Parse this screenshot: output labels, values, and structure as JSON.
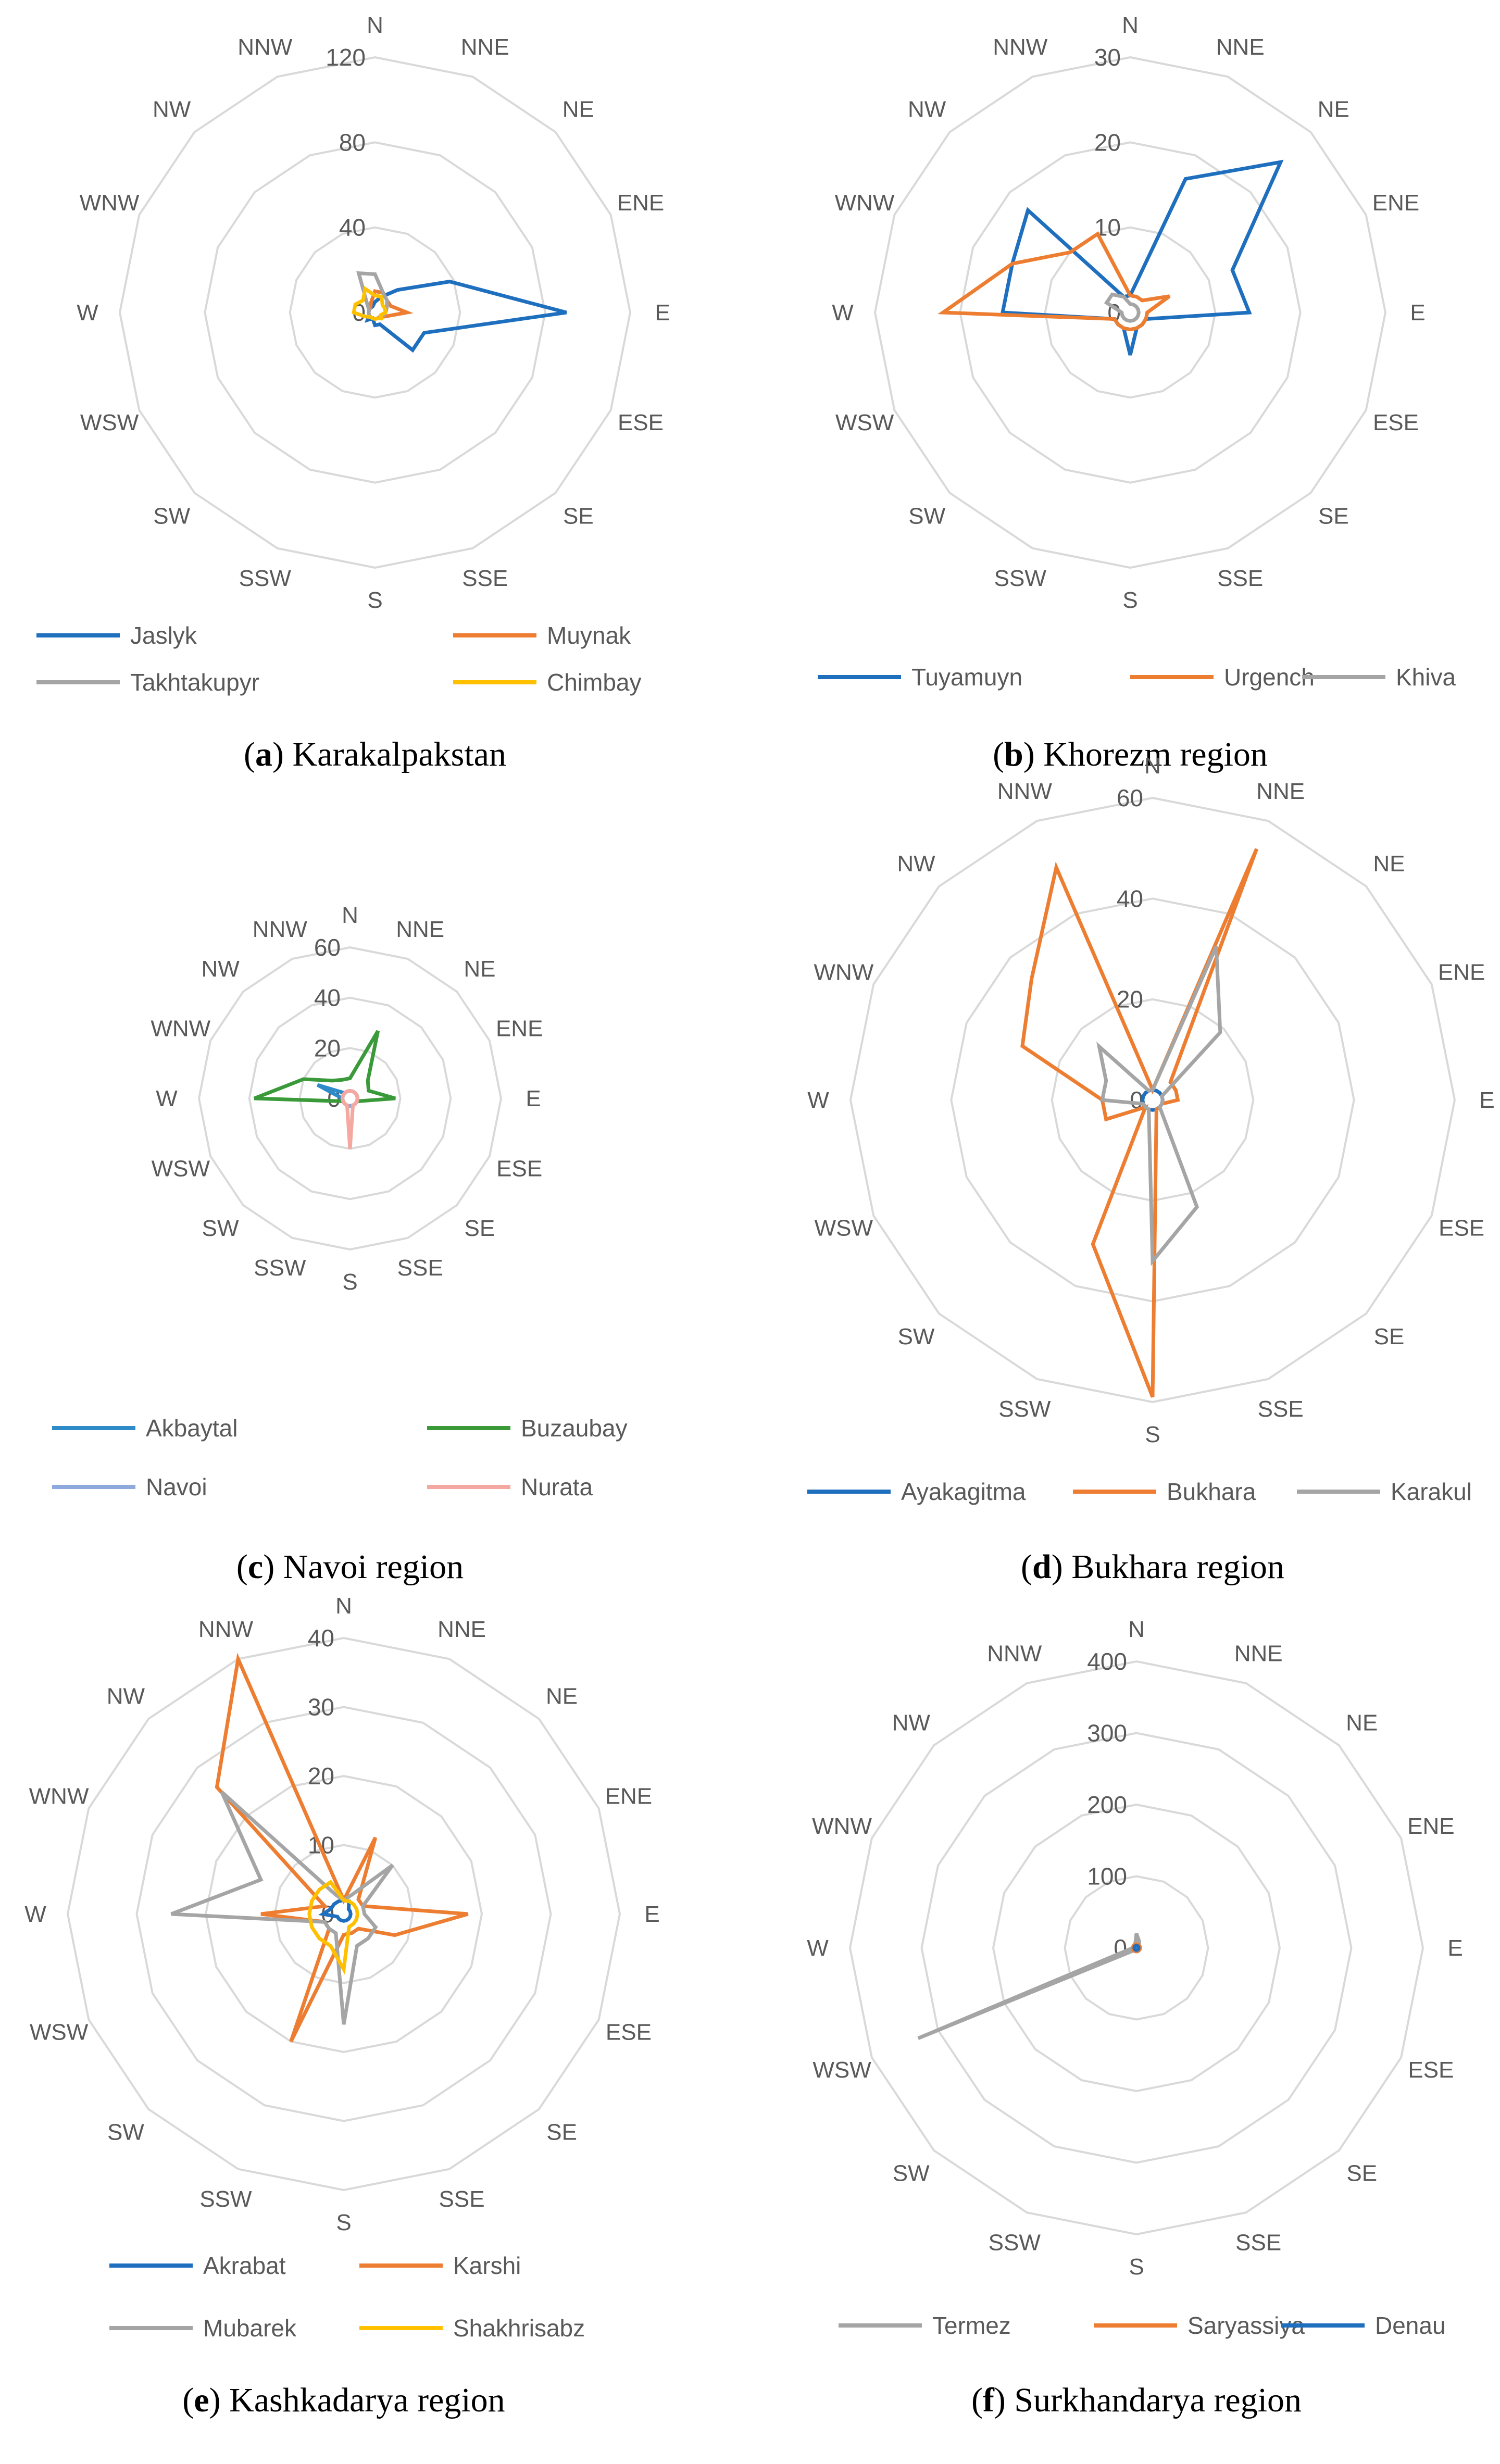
{
  "directions": [
    "N",
    "NNE",
    "NE",
    "ENE",
    "E",
    "ESE",
    "SE",
    "SSE",
    "S",
    "SSW",
    "SW",
    "WSW",
    "W",
    "WNW",
    "NW",
    "NNW"
  ],
  "chart_data": [
    {
      "type": "radar",
      "caption_letter": "a",
      "caption_text": "Karakalpakstan",
      "ticks": [
        "0",
        "40",
        "80",
        "120"
      ],
      "rmax": 120,
      "legend_columns": 2,
      "series": [
        {
          "name": "Jaslyk",
          "color": "#1F6FBF",
          "values": [
            5,
            8,
            15,
            38,
            90,
            25,
            25,
            6,
            6,
            3,
            5,
            3,
            3,
            3,
            3,
            3
          ]
        },
        {
          "name": "Muynak",
          "color": "#ED7D31",
          "values": [
            10,
            10,
            8,
            8,
            15,
            5,
            3,
            3,
            3,
            3,
            3,
            3,
            3,
            3,
            3,
            5
          ]
        },
        {
          "name": "Takhtakupyr",
          "color": "#A5A5A5",
          "values": [
            18,
            10,
            8,
            6,
            5,
            4,
            4,
            3,
            3,
            3,
            3,
            3,
            3,
            3,
            5,
            20
          ]
        },
        {
          "name": "Chimbay",
          "color": "#FFC000",
          "values": [
            8,
            8,
            5,
            5,
            5,
            3,
            4,
            3,
            3,
            3,
            3,
            5,
            10,
            10,
            8,
            12
          ]
        }
      ]
    },
    {
      "type": "radar",
      "caption_letter": "b",
      "caption_text": "Khorezm region",
      "ticks": [
        "0",
        "10",
        "20",
        "30"
      ],
      "rmax": 30,
      "legend_columns": 3,
      "series": [
        {
          "name": "Tuyamuyn",
          "color": "#1F6FBF",
          "values": [
            2,
            17,
            25,
            13,
            14,
            2,
            2,
            2,
            5,
            2,
            2,
            2,
            15,
            15,
            17,
            2
          ]
        },
        {
          "name": "Urgench",
          "color": "#ED7D31",
          "values": [
            2,
            2,
            2,
            5,
            2,
            2,
            2,
            2,
            2,
            2,
            2,
            2,
            22,
            15,
            10,
            10
          ]
        },
        {
          "name": "Khiva",
          "color": "#A5A5A5",
          "values": [
            1,
            1,
            1,
            1,
            1,
            1,
            1,
            1,
            1,
            1,
            1,
            1,
            1,
            3,
            3,
            2
          ]
        }
      ]
    },
    {
      "type": "radar",
      "caption_letter": "c",
      "caption_text": "Navoi region",
      "ticks": [
        "0",
        "20",
        "40",
        "60"
      ],
      "rmax": 60,
      "legend_columns": 2,
      "series": [
        {
          "name": "Akbaytal",
          "color": "#2E8BC8",
          "values": [
            3,
            3,
            3,
            3,
            3,
            3,
            3,
            3,
            3,
            3,
            3,
            3,
            3,
            14,
            3,
            3
          ]
        },
        {
          "name": "Buzaubay",
          "color": "#3A9A3A",
          "values": [
            8,
            29,
            10,
            8,
            18,
            3,
            3,
            3,
            3,
            3,
            3,
            3,
            38,
            20,
            10,
            8
          ]
        },
        {
          "name": "Navoi",
          "color": "#8EA9DB",
          "values": [
            3,
            3,
            3,
            3,
            3,
            3,
            3,
            3,
            3,
            3,
            3,
            3,
            3,
            3,
            3,
            3
          ]
        },
        {
          "name": "Nurata",
          "color": "#F4A8A0",
          "values": [
            3,
            3,
            3,
            3,
            3,
            3,
            3,
            3,
            20,
            3,
            3,
            3,
            3,
            3,
            3,
            3
          ]
        }
      ]
    },
    {
      "type": "radar",
      "caption_letter": "d",
      "caption_text": "Bukhara region",
      "ticks": [
        "0",
        "20",
        "40",
        "60"
      ],
      "rmax": 60,
      "legend_columns": 3,
      "series": [
        {
          "name": "Ayakagitma",
          "color": "#1F6FBF",
          "values": [
            2,
            2,
            2,
            2,
            2,
            2,
            2,
            2,
            2,
            2,
            2,
            2,
            2,
            2,
            2,
            2
          ]
        },
        {
          "name": "Bukhara",
          "color": "#ED7D31",
          "values": [
            2,
            54,
            5,
            5,
            5,
            2,
            2,
            2,
            59,
            31,
            2,
            10,
            10,
            28,
            34,
            50
          ]
        },
        {
          "name": "Karakul",
          "color": "#A5A5A5",
          "values": [
            2,
            33,
            19,
            2,
            2,
            2,
            2,
            23,
            32,
            2,
            2,
            2,
            10,
            10,
            15,
            2
          ]
        }
      ]
    },
    {
      "type": "radar",
      "caption_letter": "e",
      "caption_text": "Kashkadarya region",
      "ticks": [
        "0",
        "10",
        "20",
        "30",
        "40"
      ],
      "rmax": 40,
      "legend_columns": 2,
      "series": [
        {
          "name": "Akrabat",
          "color": "#1F6FBF",
          "values": [
            2,
            2,
            1,
            1,
            1,
            1,
            1,
            1,
            1,
            1,
            1,
            1,
            3,
            2,
            2,
            2
          ]
        },
        {
          "name": "Karshi",
          "color": "#ED7D31",
          "values": [
            2,
            12,
            3,
            3,
            18,
            8,
            3,
            3,
            3,
            20,
            3,
            3,
            12,
            3,
            26,
            42
          ]
        },
        {
          "name": "Mubarek",
          "color": "#A5A5A5",
          "values": [
            2,
            3,
            10,
            3,
            3,
            5,
            5,
            5,
            16,
            3,
            3,
            3,
            25,
            13,
            25,
            3
          ]
        },
        {
          "name": "Shakhrisabz",
          "color": "#FFC000",
          "values": [
            2,
            2,
            2,
            2,
            2,
            2,
            2,
            2,
            8,
            5,
            5,
            5,
            5,
            5,
            5,
            5
          ]
        }
      ]
    },
    {
      "type": "radar",
      "caption_letter": "f",
      "caption_text": "Surkhandarya region",
      "ticks": [
        "0",
        "100",
        "200",
        "300",
        "400"
      ],
      "rmax": 400,
      "legend_columns": 3,
      "series": [
        {
          "name": "Termez",
          "color": "#A5A5A5",
          "values": [
            20,
            10,
            5,
            5,
            5,
            5,
            5,
            5,
            5,
            5,
            5,
            330,
            5,
            5,
            5,
            5
          ]
        },
        {
          "name": "Saryassiya",
          "color": "#ED7D31",
          "values": [
            5,
            5,
            5,
            5,
            5,
            5,
            5,
            5,
            5,
            5,
            5,
            5,
            5,
            5,
            5,
            5
          ]
        },
        {
          "name": "Denau",
          "color": "#1F6FBF",
          "values": [
            3,
            3,
            3,
            3,
            3,
            3,
            3,
            3,
            3,
            3,
            3,
            3,
            3,
            3,
            3,
            3
          ]
        }
      ]
    }
  ]
}
